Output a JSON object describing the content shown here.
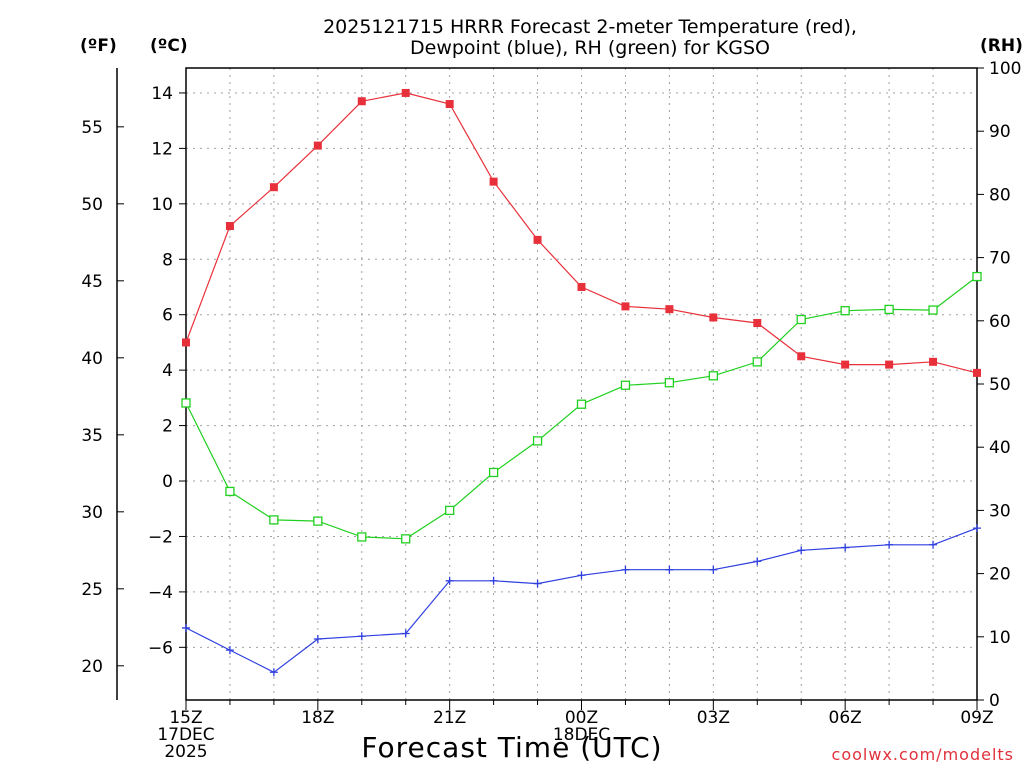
{
  "title_line1": "2025121715 HRRR Forecast 2-meter Temperature (red),",
  "title_line2": "Dewpoint (blue), RH (green) for KGSO",
  "unit_f": "(ºF)",
  "unit_c": "(ºC)",
  "unit_rh": "(RH)",
  "credit": "coolwx.com/modelts",
  "colors": {
    "temp": "#e8303a",
    "dew": "#2f3fe0",
    "rh": "#20d020",
    "grid": "#a0a0a0"
  },
  "chart_data": {
    "type": "line",
    "title": "2025121715 HRRR Forecast 2-meter Temperature (red), Dewpoint (blue), RH (green) for KGSO",
    "xlabel": "Forecast Time (UTC)",
    "ylabel_left": "(ºC)",
    "ylabel_far_left": "(ºF)",
    "ylabel_right": "(RH)",
    "x_hours": [
      0,
      1,
      2,
      3,
      4,
      5,
      6,
      7,
      8,
      9,
      10,
      11,
      12,
      13,
      14,
      15,
      16,
      17,
      18
    ],
    "x_ticks": [
      {
        "hour": 0,
        "lines": [
          "15Z",
          "17DEC",
          "2025"
        ]
      },
      {
        "hour": 3,
        "lines": [
          "18Z"
        ]
      },
      {
        "hour": 6,
        "lines": [
          "21Z"
        ]
      },
      {
        "hour": 9,
        "lines": [
          "00Z",
          "18DEC"
        ]
      },
      {
        "hour": 12,
        "lines": [
          "03Z"
        ]
      },
      {
        "hour": 15,
        "lines": [
          "06Z"
        ]
      },
      {
        "hour": 18,
        "lines": [
          "09Z"
        ]
      }
    ],
    "ylim_c": [
      -7.9,
      14.9
    ],
    "yticks_c": [
      -6,
      -4,
      -2,
      0,
      2,
      4,
      6,
      8,
      10,
      12,
      14
    ],
    "yticks_f": [
      20,
      25,
      30,
      35,
      40,
      45,
      50,
      55
    ],
    "ylim_rh": [
      0,
      100
    ],
    "yticks_rh": [
      0,
      10,
      20,
      30,
      40,
      50,
      60,
      70,
      80,
      90,
      100
    ],
    "grid": true,
    "series": [
      {
        "name": "Temperature",
        "axis": "c",
        "marker": "filled-square",
        "values": [
          5.0,
          9.2,
          10.6,
          12.1,
          13.7,
          14.0,
          13.6,
          10.8,
          8.7,
          7.0,
          6.3,
          6.2,
          5.9,
          5.7,
          4.5,
          4.2,
          4.2,
          4.3,
          3.9
        ]
      },
      {
        "name": "Dewpoint",
        "axis": "c",
        "marker": "plus",
        "values": [
          -5.3,
          -6.1,
          -6.9,
          -5.7,
          -5.6,
          -5.5,
          -3.6,
          -3.6,
          -3.7,
          -3.4,
          -3.2,
          -3.2,
          -3.2,
          -2.9,
          -2.5,
          -2.4,
          -2.3,
          -2.3,
          -1.7
        ]
      },
      {
        "name": "RH",
        "axis": "rh",
        "marker": "open-square",
        "values": [
          47,
          33,
          28.5,
          28.3,
          25.8,
          25.5,
          30,
          36,
          41,
          46.8,
          49.8,
          50.2,
          51.3,
          53.5,
          60.2,
          61.6,
          61.8,
          61.7,
          67
        ]
      }
    ]
  }
}
